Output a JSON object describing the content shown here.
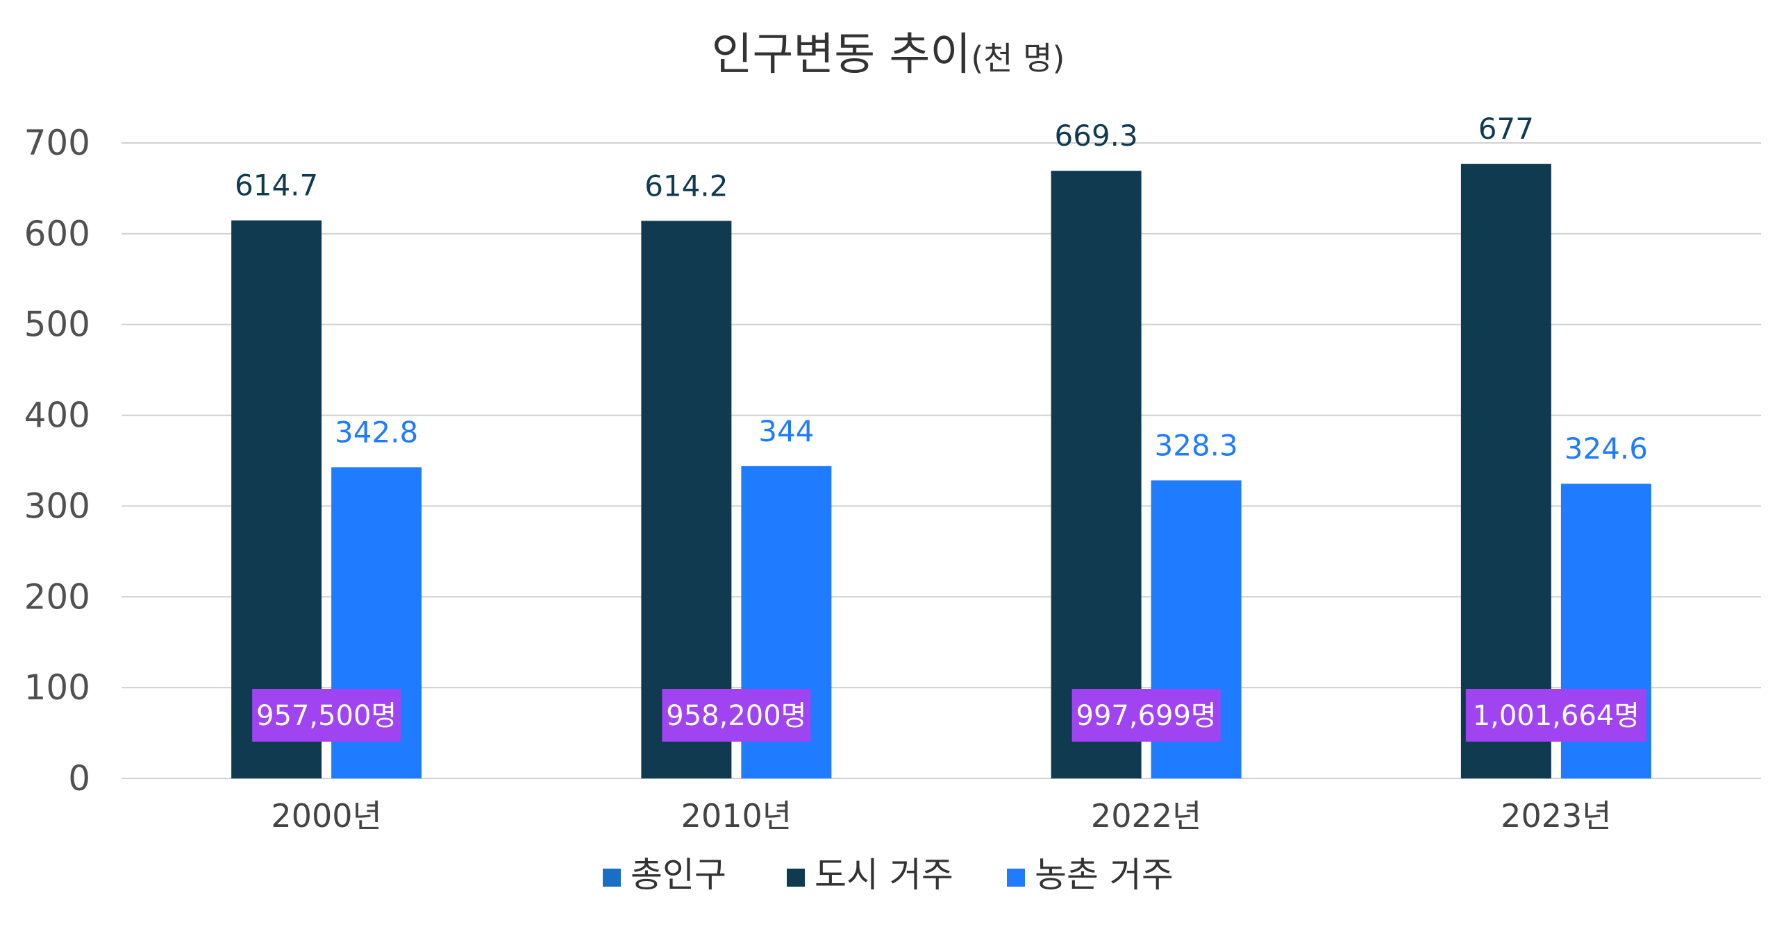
{
  "chart_data": {
    "type": "bar",
    "title": "인구변동 추이",
    "title_suffix": "(천 명)",
    "categories": [
      "2000년",
      "2010년",
      "2022년",
      "2023년"
    ],
    "series": [
      {
        "name": "총인구",
        "values": [
          957.5,
          958.2,
          997.699,
          1001.664
        ],
        "color": "#1a6fc4",
        "hidden_bars": true
      },
      {
        "name": "도시 거주",
        "values": [
          614.7,
          614.2,
          669.3,
          677
        ],
        "color": "#0f3a4f",
        "labels": [
          "614.7",
          "614.2",
          "669.3",
          "677"
        ]
      },
      {
        "name": "농촌 거주",
        "values": [
          342.8,
          344,
          328.3,
          324.6
        ],
        "color": "#1f7bff",
        "labels": [
          "342.8",
          "344",
          "328.3",
          "324.6"
        ]
      }
    ],
    "total_labels": [
      "957,500명",
      "958,200명",
      "997,699명",
      "1,001,664명"
    ],
    "total_label_color": "#9f44f0",
    "ylim": [
      0,
      700
    ],
    "yticks": [
      "0",
      "100",
      "200",
      "300",
      "400",
      "500",
      "600",
      "700"
    ],
    "grid": true,
    "legend_position": "bottom",
    "xlabel": "",
    "ylabel": ""
  }
}
